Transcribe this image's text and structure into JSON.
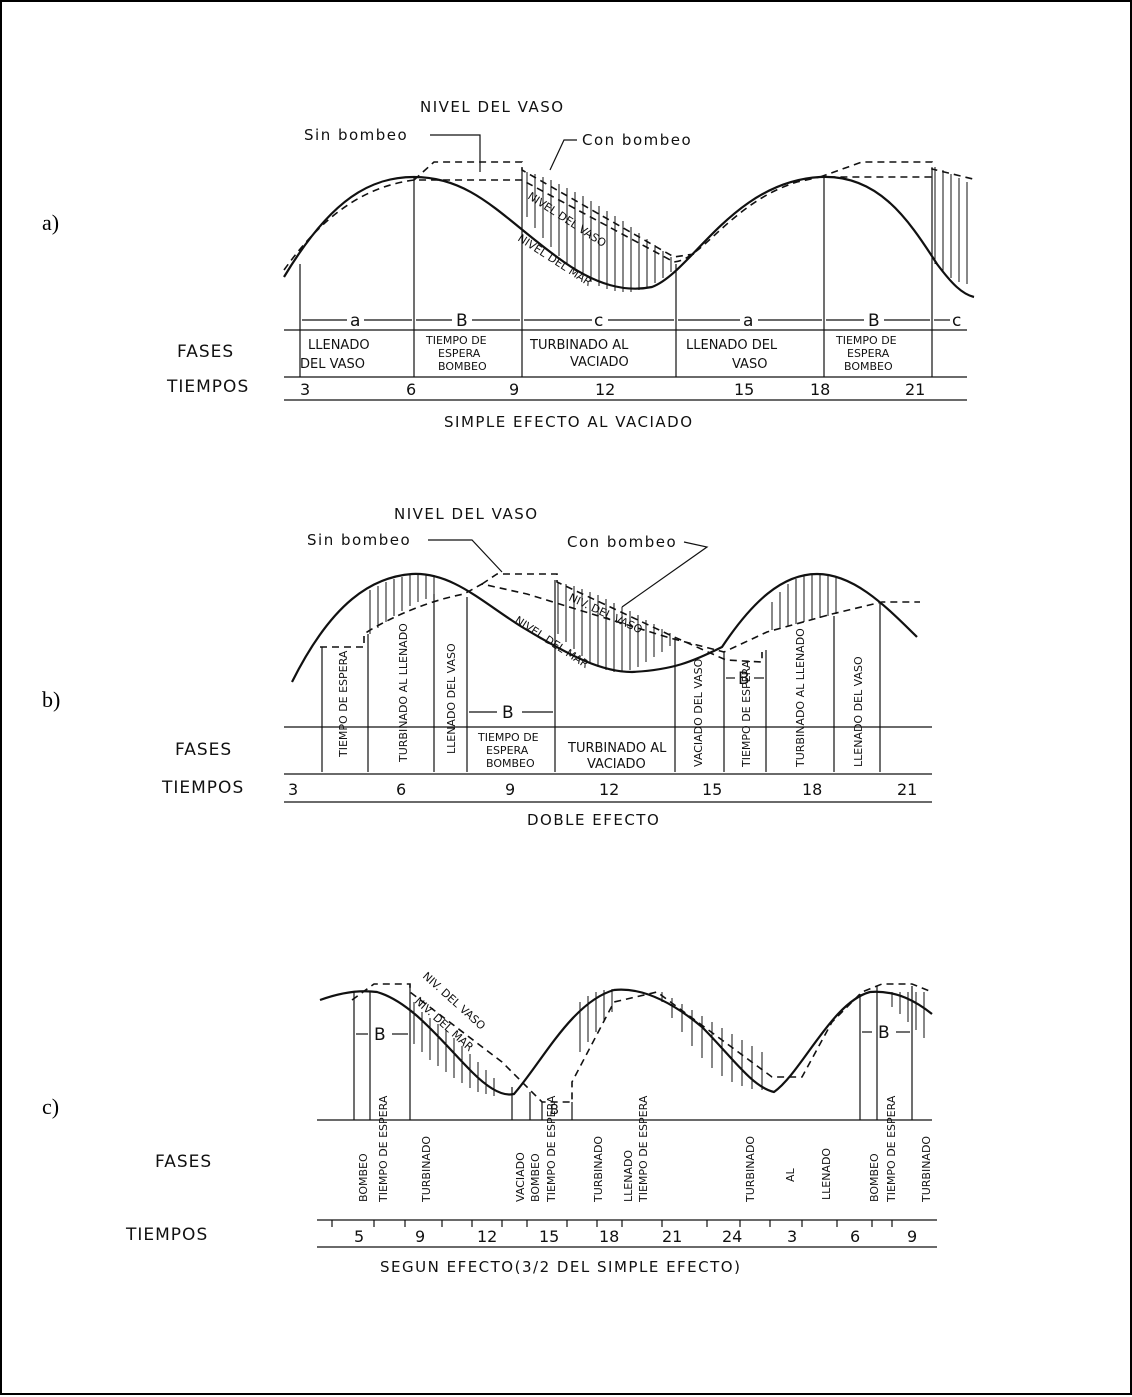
{
  "panels": {
    "a": {
      "letter": "a)",
      "heading": "NIVEL DEL VASO",
      "sin_bombeo": "Sin bombeo",
      "con_bombeo": "Con bombeo",
      "curve_labels": [
        "NIVEL DEL VASO",
        "NIVEL DEL MAR"
      ],
      "fases_label": "FASES",
      "tiempos_label": "TIEMPOS",
      "phase_letters": [
        "a",
        "B",
        "c",
        "a",
        "B",
        "c"
      ],
      "phases": [
        [
          "LLENADO",
          "DEL VASO"
        ],
        [
          "TIEMPO DE",
          "ESPERA",
          "BOMBEO"
        ],
        [
          "TURBINADO  AL",
          "VACIADO"
        ],
        [
          "LLENADO DEL",
          "VASO"
        ],
        [
          "TIEMPO DE",
          "ESPERA",
          "BOMBEO"
        ]
      ],
      "tiempos": [
        "3",
        "6",
        "9",
        "12",
        "15",
        "18",
        "21"
      ],
      "caption": "SIMPLE EFECTO AL VACIADO"
    },
    "b": {
      "letter": "b)",
      "heading": "NIVEL DEL VASO",
      "sin_bombeo": "Sin bombeo",
      "con_bombeo": "Con bombeo",
      "curve_labels": [
        "NIV. DEL VASO",
        "NIVEL DEL MAR"
      ],
      "fases_label": "FASES",
      "tiempos_label": "TIEMPOS",
      "phase_letters": [
        "B",
        "B"
      ],
      "vertical_phases": [
        "TIEMPO DE ESPERA",
        "TURBINADO AL LLENADO",
        "LLENADO DEL VASO",
        "VACIADO DEL VASO",
        "TIEMPO DE ESPERA",
        "TURBINADO AL LLENADO",
        "LLENADO DEL VASO"
      ],
      "box_phases": [
        [
          "TIEMPO DE",
          "ESPERA",
          "BOMBEO"
        ],
        [
          "TURBINADO AL",
          "VACIADO"
        ]
      ],
      "tiempos": [
        "3",
        "6",
        "9",
        "12",
        "15",
        "18",
        "21"
      ],
      "caption": "DOBLE EFECTO"
    },
    "c": {
      "letter": "c)",
      "curve_labels": [
        "NIV. DEL VASO",
        "NIV. DEL MAR"
      ],
      "fases_label": "FASES",
      "tiempos_label": "TIEMPOS",
      "phase_letters": [
        "B",
        "B",
        "B"
      ],
      "vertical_phases": [
        "BOMBEO",
        "TIEMPO DE ESPERA",
        "TURBINADO",
        "VACIADO",
        "BOMBEO",
        "TIEMPO DE ESPERA",
        "TURBINADO",
        "LLENADO",
        "TIEMPO DE ESPERA",
        "TURBINADO",
        "AL",
        "LLENADO",
        "BOMBEO",
        "TIEMPO DE ESPERA",
        "TURBINADO"
      ],
      "tiempos": [
        "5",
        "9",
        "12",
        "15",
        "18",
        "21",
        "24",
        "3",
        "6",
        "9"
      ],
      "caption": "SEGUN EFECTO(3/2 DEL SIMPLE EFECTO)"
    }
  }
}
